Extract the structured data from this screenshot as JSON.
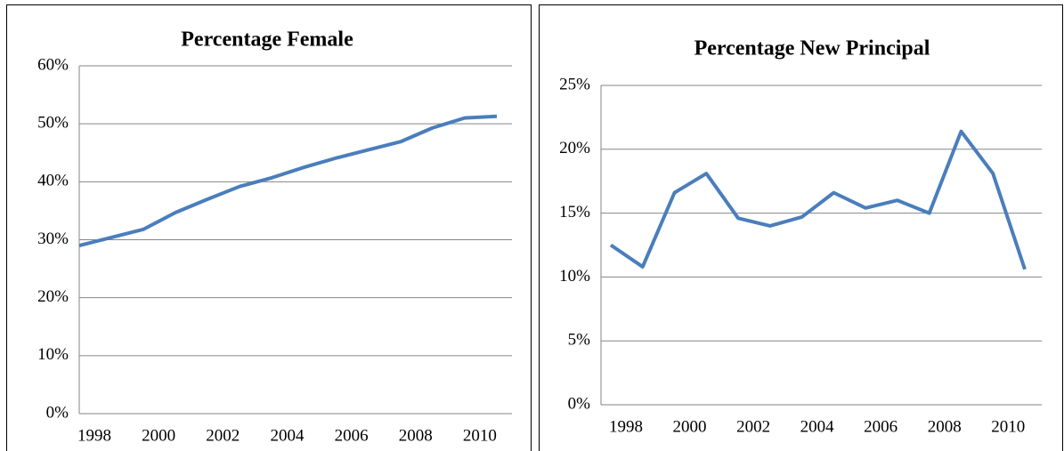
{
  "chart_data": [
    {
      "type": "line",
      "title": "Percentage Female",
      "categories": [
        "1998",
        null,
        "2000",
        null,
        "2002",
        null,
        "2004",
        null,
        "2006",
        null,
        "2008",
        null,
        "2010",
        null
      ],
      "values": [
        29.0,
        30.4,
        31.8,
        34.7,
        37.0,
        39.2,
        40.7,
        42.5,
        44.1,
        45.5,
        46.9,
        49.3,
        51.0,
        51.3
      ],
      "color": "#4a7ebb",
      "grid": true,
      "ylim": [
        0,
        60
      ],
      "yticks": [
        {
          "value": 0,
          "label": "0%"
        },
        {
          "value": 10,
          "label": "10%"
        },
        {
          "value": 20,
          "label": "20%"
        },
        {
          "value": 30,
          "label": "30%"
        },
        {
          "value": 40,
          "label": "40%"
        },
        {
          "value": 50,
          "label": "50%"
        },
        {
          "value": 60,
          "label": "60%"
        }
      ]
    },
    {
      "type": "line",
      "title": "Percentage New Principal",
      "categories": [
        "1998",
        null,
        "2000",
        null,
        "2002",
        null,
        "2004",
        null,
        "2006",
        null,
        "2008",
        null,
        "2010",
        null
      ],
      "values": [
        12.5,
        10.8,
        16.6,
        18.1,
        14.6,
        14.0,
        14.7,
        16.6,
        15.4,
        16.0,
        15.0,
        21.4,
        18.1,
        10.6
      ],
      "color": "#4a7ebb",
      "grid": true,
      "ylim": [
        0,
        25
      ],
      "yticks": [
        {
          "value": 0,
          "label": "0%"
        },
        {
          "value": 5,
          "label": "5%"
        },
        {
          "value": 10,
          "label": "10%"
        },
        {
          "value": 15,
          "label": "15%"
        },
        {
          "value": 20,
          "label": "20%"
        },
        {
          "value": 25,
          "label": "25%"
        }
      ]
    }
  ]
}
